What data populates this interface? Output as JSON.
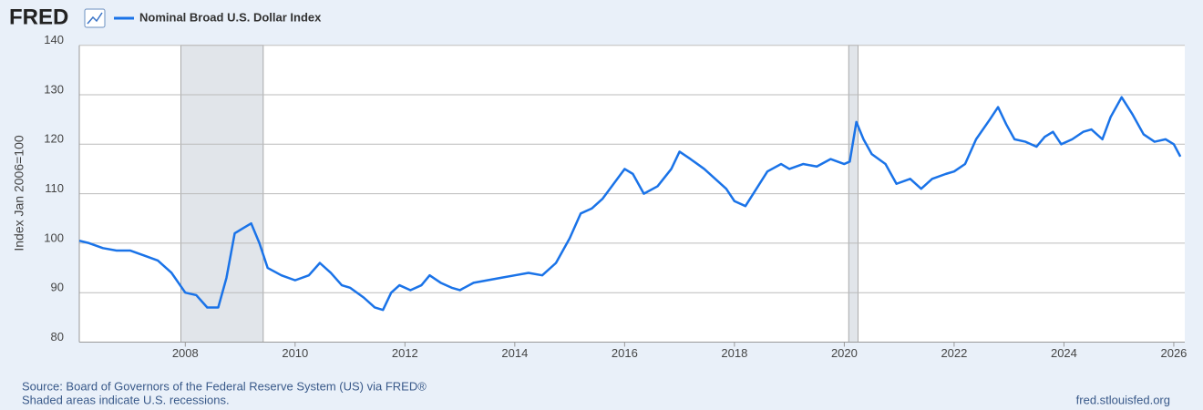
{
  "logo": "FRED",
  "chart_data": {
    "type": "line",
    "y_label": "Index Jan 2006=100",
    "x": [
      2006.07,
      2006.25,
      2006.5,
      2006.75,
      2007.0,
      2007.25,
      2007.5,
      2007.75,
      2008.0,
      2008.2,
      2008.4,
      2008.6,
      2008.75,
      2008.9,
      2009.05,
      2009.2,
      2009.35,
      2009.5,
      2009.75,
      2010.0,
      2010.25,
      2010.45,
      2010.65,
      2010.85,
      2011.0,
      2011.25,
      2011.45,
      2011.6,
      2011.75,
      2011.9,
      2012.1,
      2012.3,
      2012.45,
      2012.65,
      2012.85,
      2013.0,
      2013.25,
      2013.5,
      2013.75,
      2014.0,
      2014.25,
      2014.5,
      2014.75,
      2015.0,
      2015.2,
      2015.4,
      2015.6,
      2015.8,
      2016.0,
      2016.15,
      2016.35,
      2016.6,
      2016.85,
      2017.0,
      2017.2,
      2017.45,
      2017.65,
      2017.85,
      2018.0,
      2018.2,
      2018.4,
      2018.6,
      2018.85,
      2019.0,
      2019.25,
      2019.5,
      2019.75,
      2020.0,
      2020.1,
      2020.22,
      2020.35,
      2020.5,
      2020.75,
      2020.95,
      2021.2,
      2021.4,
      2021.6,
      2021.85,
      2022.0,
      2022.2,
      2022.4,
      2022.65,
      2022.8,
      2022.95,
      2023.1,
      2023.3,
      2023.5,
      2023.65,
      2023.8,
      2023.95,
      2024.15,
      2024.35,
      2024.5,
      2024.7,
      2024.85,
      2025.05,
      2025.25,
      2025.45,
      2025.65,
      2025.85,
      2026.0,
      2026.12
    ],
    "series": [
      {
        "name": "Nominal Broad U.S. Dollar Index",
        "color": "#1a73e8",
        "values": [
          100.5,
          100,
          99,
          98.5,
          98.5,
          97.5,
          96.5,
          94,
          90,
          89.5,
          87,
          87,
          93,
          102,
          103,
          104,
          100,
          95,
          93.5,
          92.5,
          93.5,
          96,
          94,
          91.5,
          91,
          89,
          87,
          86.5,
          90,
          91.5,
          90.5,
          91.5,
          93.5,
          92,
          91,
          90.5,
          92,
          92.5,
          93,
          93.5,
          94,
          93.5,
          96,
          101,
          106,
          107,
          109,
          112,
          115,
          114,
          110,
          111.5,
          115,
          118.5,
          117,
          115,
          113,
          111,
          108.5,
          107.5,
          111,
          114.5,
          116,
          115,
          116,
          115.5,
          117,
          116,
          116.5,
          124.5,
          121,
          118,
          116,
          112,
          113,
          111,
          113,
          114,
          114.5,
          116,
          121,
          125,
          127.5,
          124,
          121,
          120.5,
          119.5,
          121.5,
          122.5,
          120,
          121,
          122.5,
          123,
          121,
          125.5,
          129.5,
          126,
          122,
          120.5,
          121,
          120,
          117.5
        ]
      }
    ],
    "recessions": [
      [
        2007.92,
        2009.42
      ],
      [
        2020.08,
        2020.25
      ]
    ],
    "recession_color": "#e1e5ea",
    "xlim": [
      2006.07,
      2026.2
    ],
    "xticks": [
      2008,
      2010,
      2012,
      2014,
      2016,
      2018,
      2020,
      2022,
      2024,
      2026
    ],
    "ylim": [
      80,
      140
    ],
    "yticks": [
      80,
      90,
      100,
      110,
      120,
      130,
      140
    ],
    "grid": true
  },
  "footer": {
    "source": "Source: Board of Governors of the Federal Reserve System (US) via FRED®",
    "note": "Shaded areas indicate U.S. recessions.",
    "site": "fred.stlouisfed.org"
  }
}
